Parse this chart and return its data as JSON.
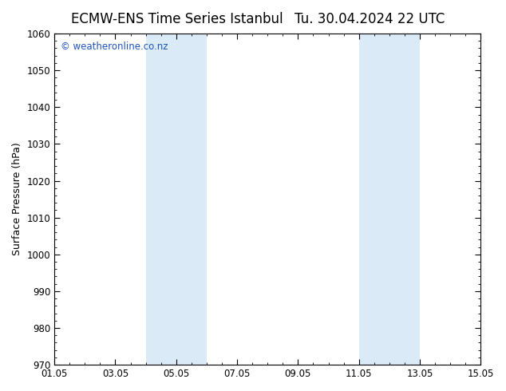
{
  "title_left": "ECMW-ENS Time Series Istanbul",
  "title_right": "Tu. 30.04.2024 22 UTC",
  "ylabel": "Surface Pressure (hPa)",
  "ylim": [
    970,
    1060
  ],
  "yticks": [
    970,
    980,
    990,
    1000,
    1010,
    1020,
    1030,
    1040,
    1050,
    1060
  ],
  "xtick_labels": [
    "01.05",
    "03.05",
    "05.05",
    "07.05",
    "09.05",
    "11.05",
    "13.05",
    "15.05"
  ],
  "xtick_positions": [
    0,
    2,
    4,
    6,
    8,
    10,
    12,
    14
  ],
  "xlim": [
    0,
    14
  ],
  "shaded_regions": [
    {
      "xmin": 3.0,
      "xmax": 5.0,
      "color": "#daeaf7"
    },
    {
      "xmin": 10.0,
      "xmax": 12.0,
      "color": "#daeaf7"
    }
  ],
  "watermark_text": "© weatheronline.co.nz",
  "watermark_color": "#2255bb",
  "background_color": "#ffffff",
  "plot_bg_color": "#ffffff",
  "title_fontsize": 12,
  "axis_fontsize": 9,
  "tick_fontsize": 8.5,
  "watermark_fontsize": 8.5,
  "spine_color": "#000000"
}
